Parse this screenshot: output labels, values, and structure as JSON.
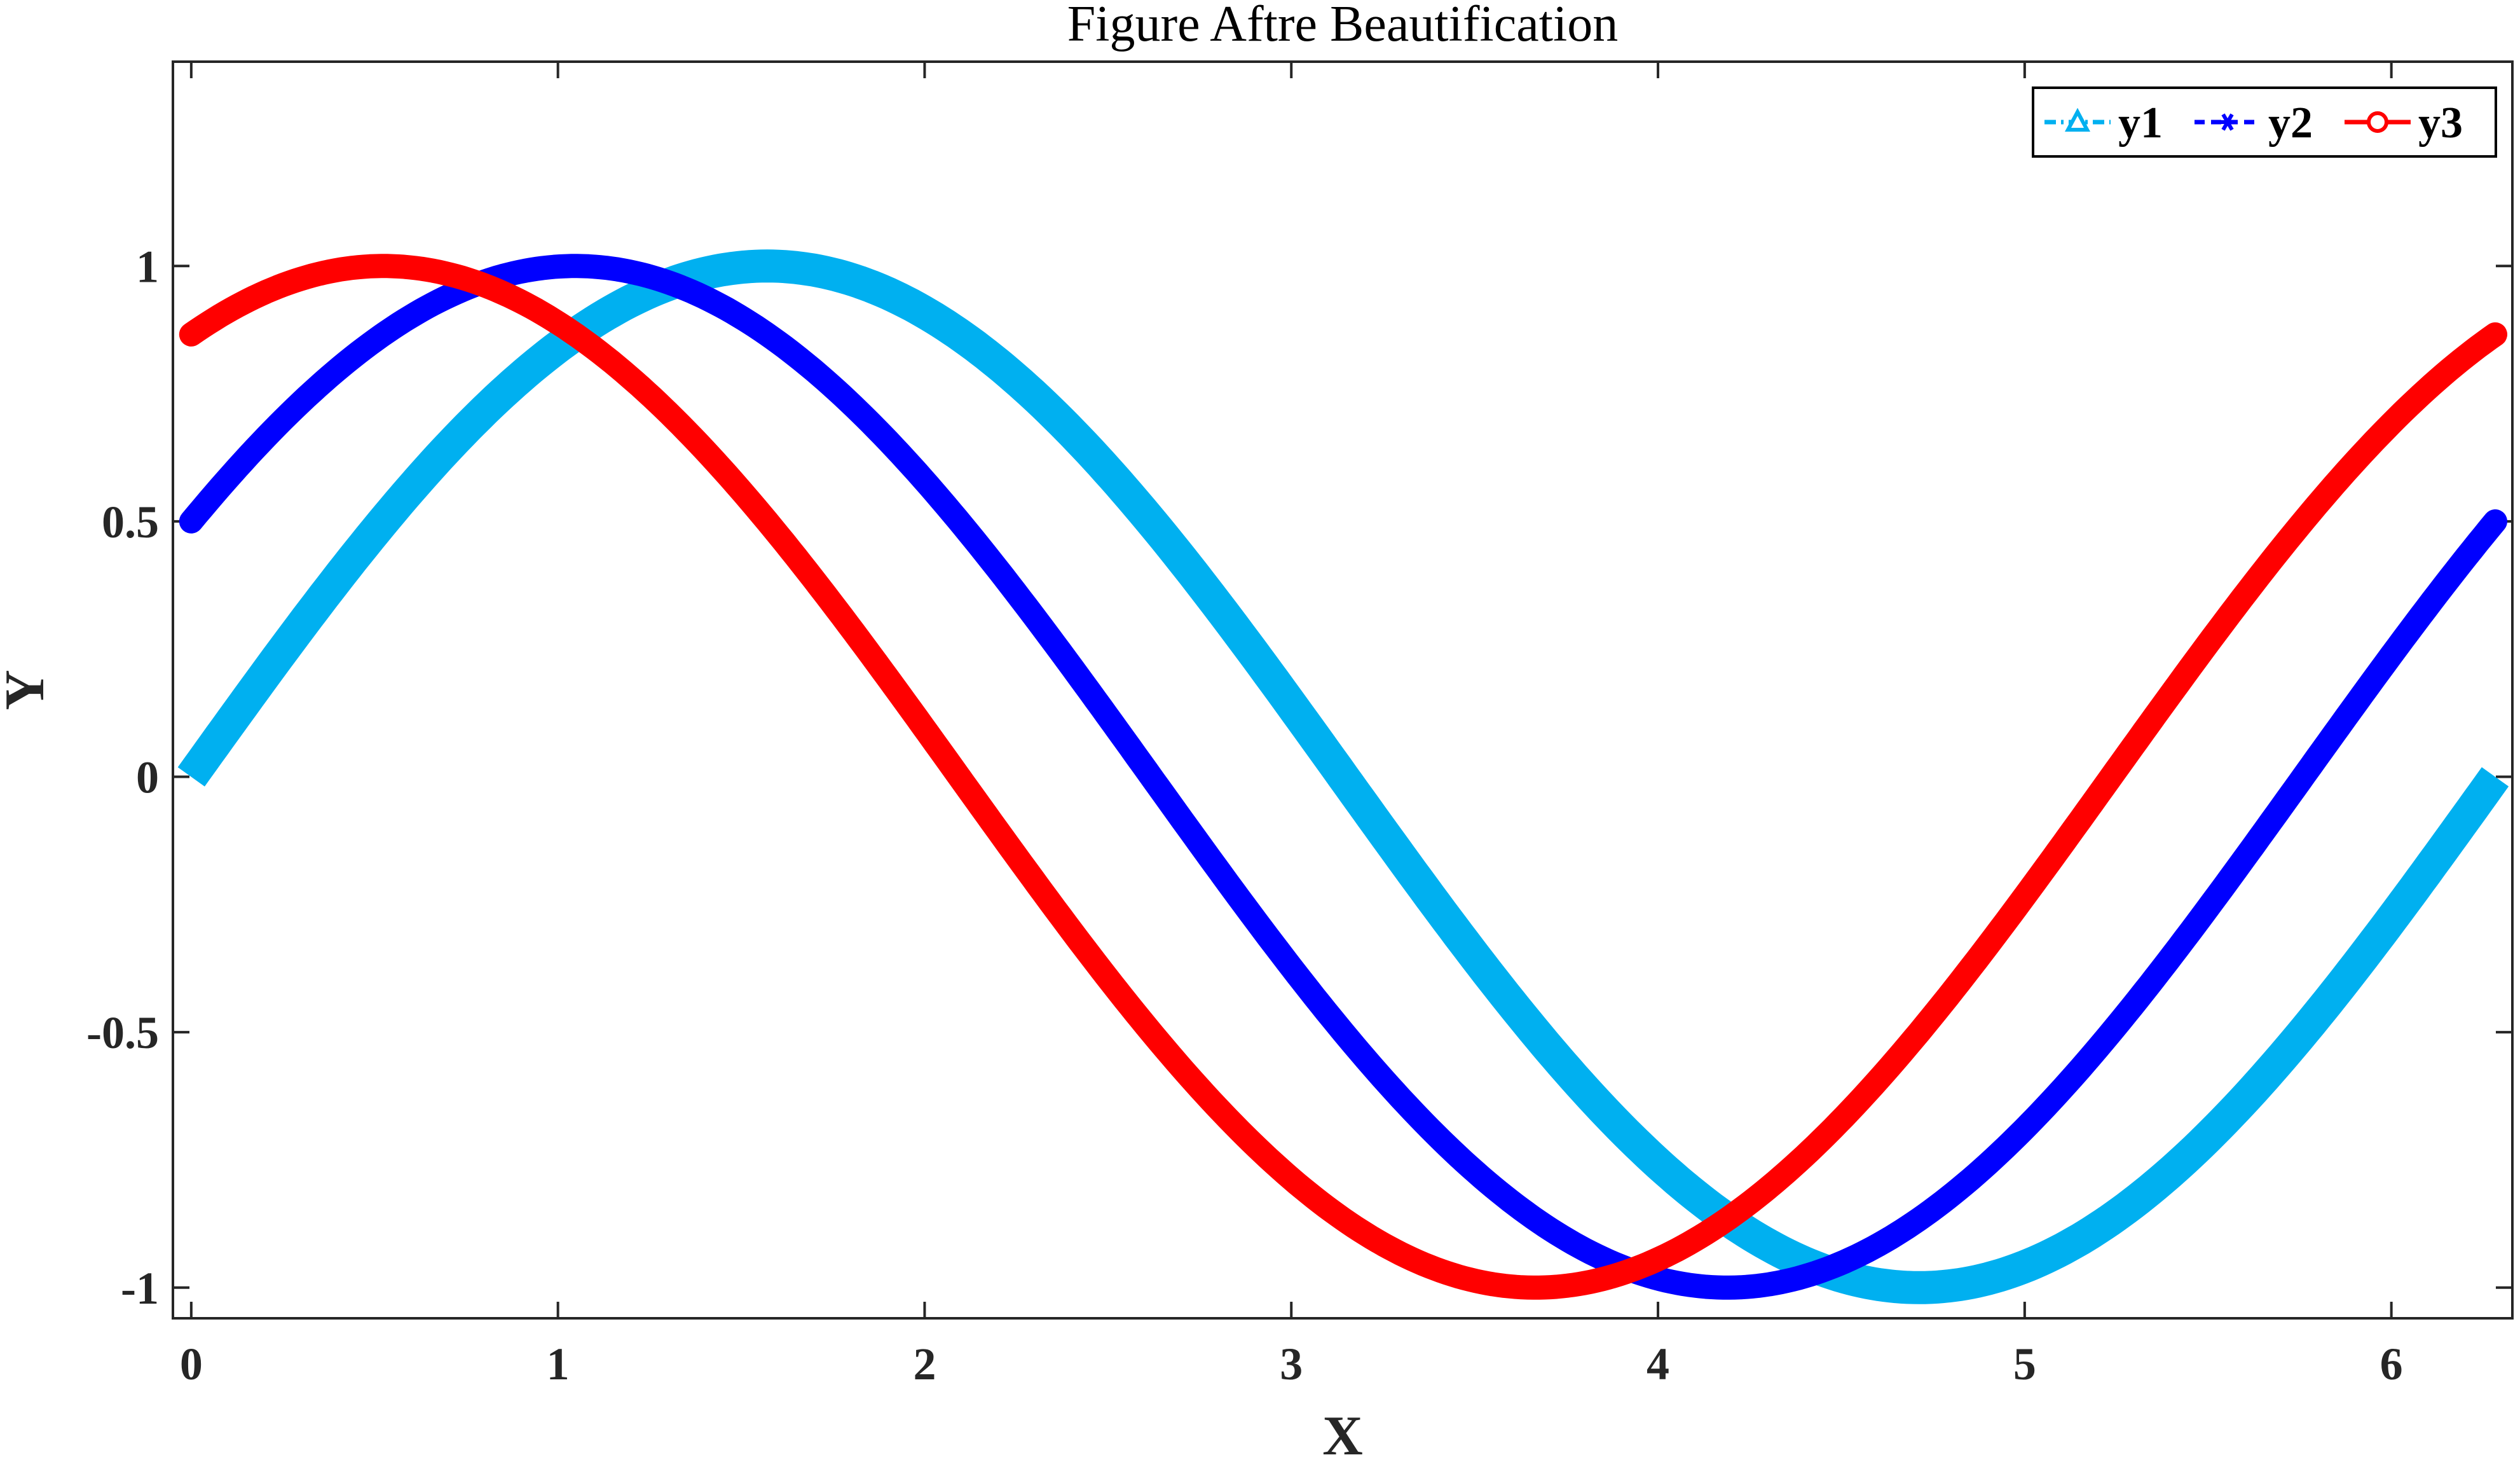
{
  "chart_data": {
    "type": "line",
    "title": "Figure Aftre Beautification",
    "xlabel": "X",
    "ylabel": "Y",
    "xlim": [
      -0.05,
      6.33
    ],
    "ylim": [
      -1.06,
      1.4
    ],
    "xticks": [
      0,
      1,
      2,
      3,
      4,
      5,
      6
    ],
    "xtick_labels": [
      "0",
      "1",
      "2",
      "3",
      "4",
      "5",
      "6"
    ],
    "yticks": [
      -1,
      -0.5,
      0,
      0.5,
      1
    ],
    "ytick_labels": [
      "-1",
      "-0.5",
      "0",
      "0.5",
      "1"
    ],
    "grid": false,
    "legend": {
      "placement": "top-right",
      "orientation": "horizontal"
    },
    "x_range": [
      0,
      6.2832
    ],
    "series": [
      {
        "name": "y1",
        "function": "sin(x)",
        "phase": 0,
        "color": "#00B0F0",
        "marker": "triangle",
        "line_style": "dash-dot"
      },
      {
        "name": "y2",
        "function": "sin(x + pi/6)",
        "phase": 0.5236,
        "color": "#0000FF",
        "marker": "asterisk",
        "line_style": "dashed"
      },
      {
        "name": "y3",
        "function": "sin(x + pi/3)",
        "phase": 1.0472,
        "color": "#FF0000",
        "marker": "circle",
        "line_style": "solid"
      }
    ]
  }
}
